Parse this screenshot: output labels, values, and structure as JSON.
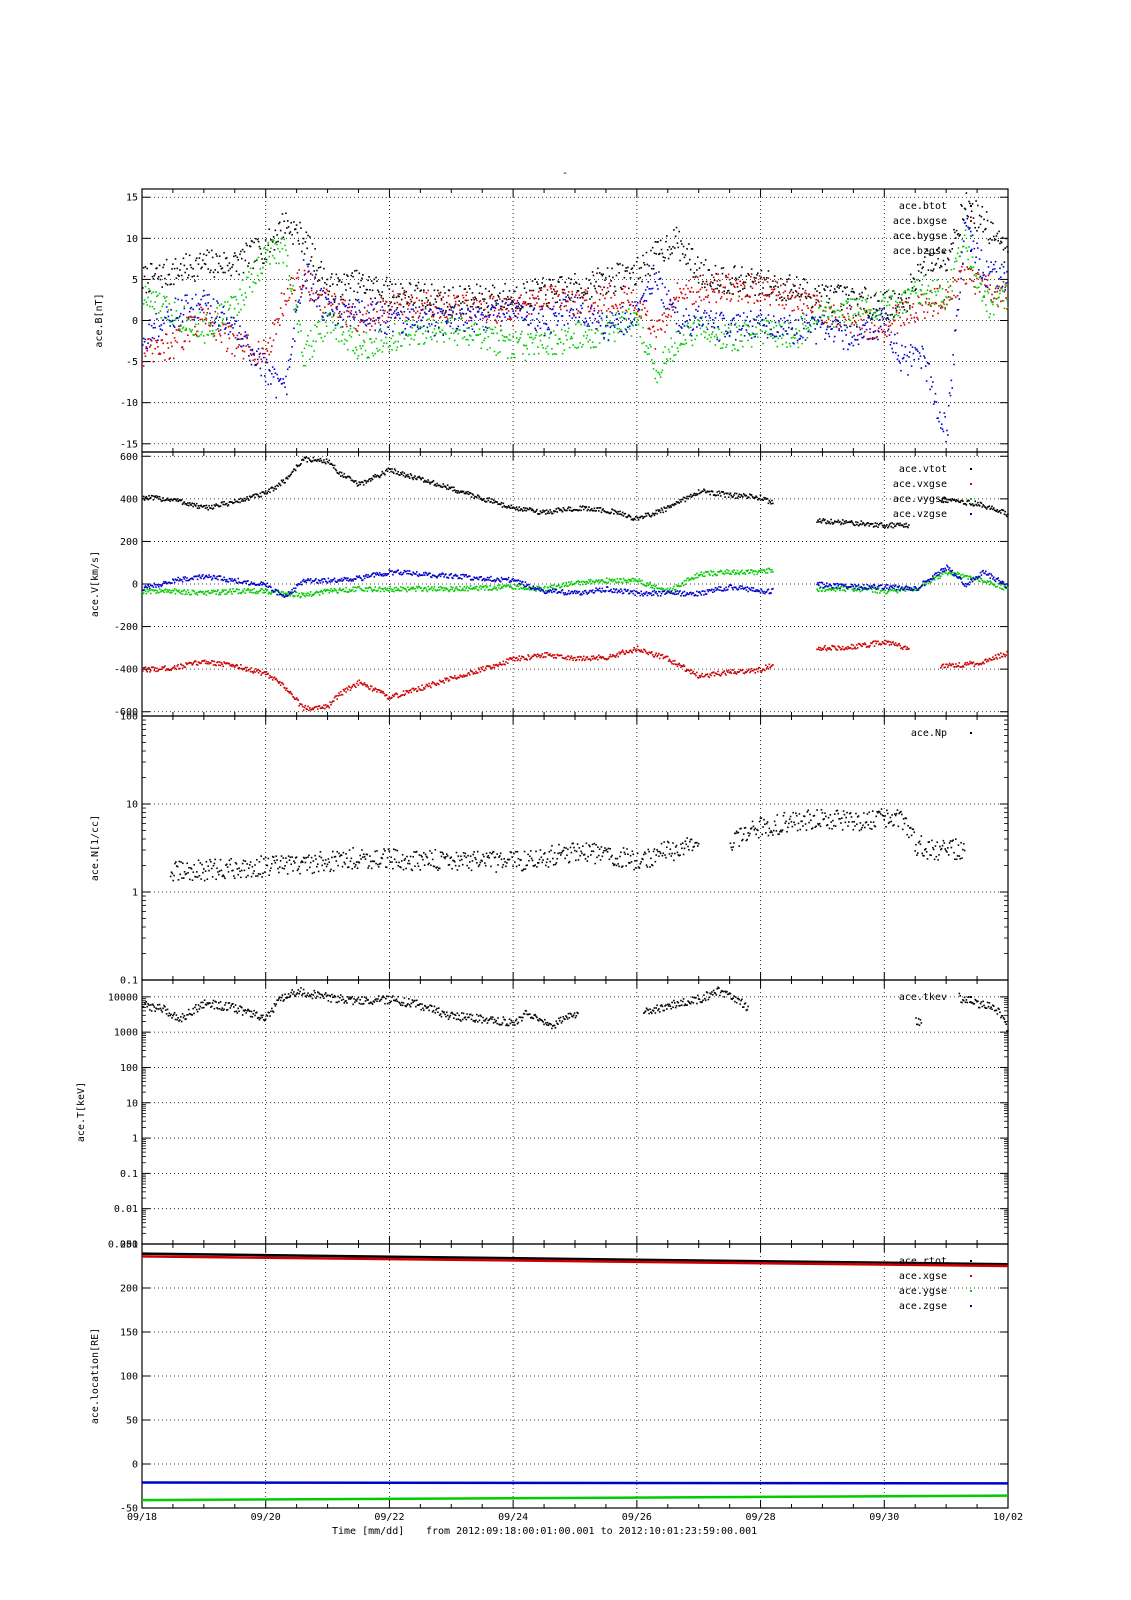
{
  "top_mark": "-",
  "footer": {
    "time_label": "Time [mm/dd]",
    "range_text": "from 2012:09:18:00:01:00.001  to  2012:10:01:23:59:00.001"
  },
  "x_axis": {
    "tick_labels": [
      "09/18",
      "09/20",
      "09/22",
      "09/24",
      "09/26",
      "09/28",
      "09/30",
      "10/02"
    ],
    "tick_days": [
      0,
      2,
      4,
      6,
      8,
      10,
      12,
      14
    ],
    "range_days": [
      0,
      14
    ]
  },
  "colors": {
    "black": "#000000",
    "red": "#cc0000",
    "green": "#00cc00",
    "blue": "#0000cc"
  },
  "chart_data": [
    {
      "id": "B",
      "type": "scatter",
      "ylabel": "ace.B[nT]",
      "ylim": [
        -16,
        16
      ],
      "scale": "linear",
      "grid": true,
      "legend_position": "top-right",
      "yticks": [
        -15,
        -10,
        -5,
        0,
        5,
        10,
        15
      ],
      "ytick_labels": [
        "-15",
        "-10",
        "-5",
        "0",
        "5",
        "10",
        "15"
      ],
      "series": [
        {
          "name": "ace.btot",
          "color": "#000000",
          "x": [
            0,
            0.5,
            1,
            1.5,
            2,
            2.3,
            2.6,
            3,
            3.5,
            4,
            5,
            6,
            6.5,
            7,
            7.5,
            8,
            8.3,
            8.6,
            9,
            9.5,
            10,
            10.5,
            11,
            11.5,
            12,
            12.3,
            12.6,
            13,
            13.3,
            13.6,
            14
          ],
          "y": [
            5,
            6,
            7,
            7,
            9,
            12,
            10,
            4,
            4.5,
            3.5,
            2.5,
            3,
            3.5,
            4,
            5,
            6,
            8,
            10,
            6,
            5,
            4.5,
            4,
            3,
            2.5,
            2,
            2,
            7,
            8,
            14,
            12,
            8
          ]
        },
        {
          "name": "ace.bxgse",
          "color": "#cc0000",
          "x": [
            0,
            0.5,
            1,
            1.5,
            2,
            2.3,
            2.6,
            3,
            3.5,
            4,
            5,
            6,
            6.5,
            7,
            7.5,
            8,
            8.3,
            8.6,
            9,
            9.5,
            10,
            10.5,
            11,
            11.5,
            12,
            12.3,
            12.6,
            13,
            13.3,
            13.6,
            14
          ],
          "y": [
            -4,
            -3,
            1,
            -3,
            -4,
            3,
            5,
            2,
            0,
            2,
            2,
            1,
            3,
            2,
            3,
            2,
            -2,
            3,
            4,
            4,
            4,
            3,
            1,
            0,
            -1,
            1,
            2,
            3,
            6,
            4,
            3
          ]
        },
        {
          "name": "ace.bygse",
          "color": "#00cc00",
          "x": [
            0,
            0.5,
            1,
            1.5,
            2,
            2.3,
            2.6,
            3,
            3.5,
            4,
            5,
            6,
            6.5,
            7,
            7.5,
            8,
            8.3,
            8.6,
            9,
            9.5,
            10,
            10.5,
            11,
            11.5,
            12,
            12.3,
            12.6,
            13,
            13.3,
            13.6,
            14
          ],
          "y": [
            3,
            1,
            -1,
            2,
            8,
            9,
            -4,
            0,
            -3,
            -2,
            -1,
            -3,
            -3,
            -2,
            -1,
            0,
            -6,
            -3,
            -1,
            -2,
            -1,
            -2,
            1,
            1,
            2,
            2,
            4,
            3,
            10,
            2,
            3
          ]
        },
        {
          "name": "ace.bzgse",
          "color": "#0000cc",
          "x": [
            0,
            0.5,
            1,
            1.5,
            2,
            2.3,
            2.6,
            3,
            3.5,
            4,
            5,
            6,
            6.5,
            7,
            7.5,
            8,
            8.3,
            8.6,
            9,
            9.5,
            10,
            10.5,
            11,
            11.5,
            12,
            12.3,
            12.6,
            13,
            13.3,
            13.6,
            14
          ],
          "y": [
            -2,
            1,
            2,
            -1,
            -6,
            -9,
            6,
            1,
            1,
            0,
            0,
            1,
            0,
            2,
            -1,
            1,
            6,
            0,
            0,
            -1,
            0,
            -1,
            -1,
            -2,
            0,
            -5,
            -4,
            -14,
            12,
            6,
            5
          ]
        }
      ]
    },
    {
      "id": "V",
      "type": "scatter",
      "ylabel": "ace.V[km/s]",
      "ylim": [
        -620,
        620
      ],
      "scale": "linear",
      "grid": true,
      "legend_position": "top-right",
      "yticks": [
        -600,
        -400,
        -200,
        0,
        200,
        400,
        600
      ],
      "ytick_labels": [
        "-600",
        "-400",
        "-200",
        "0",
        "200",
        "400",
        "600"
      ],
      "series": [
        {
          "name": "ace.vtot",
          "color": "#000000",
          "x": [
            0,
            0.5,
            1,
            1.5,
            2,
            2.3,
            2.6,
            3,
            3.2,
            3.5,
            4,
            5,
            6,
            6.5,
            7,
            7.5,
            8,
            8.5,
            9,
            9.5,
            10,
            10.2,
            null,
            10.9,
            11.5,
            12,
            12.4,
            null,
            12.9,
            13.5,
            14
          ],
          "y": [
            410,
            400,
            360,
            390,
            430,
            490,
            590,
            580,
            520,
            470,
            540,
            450,
            360,
            340,
            360,
            350,
            310,
            360,
            440,
            420,
            410,
            380,
            null,
            300,
            290,
            280,
            280,
            null,
            400,
            380,
            330
          ]
        },
        {
          "name": "ace.vxgse",
          "color": "#cc0000",
          "x": [
            0,
            0.5,
            1,
            1.5,
            2,
            2.3,
            2.6,
            3,
            3.2,
            3.5,
            4,
            5,
            6,
            6.5,
            7,
            7.5,
            8,
            8.5,
            9,
            9.5,
            10,
            10.2,
            null,
            10.9,
            11.5,
            12,
            12.4,
            null,
            12.9,
            13.5,
            14
          ],
          "y": [
            -400,
            -390,
            -360,
            -380,
            -420,
            -480,
            -580,
            -570,
            -510,
            -460,
            -530,
            -440,
            -350,
            -330,
            -350,
            -340,
            -300,
            -350,
            -430,
            -410,
            -400,
            -370,
            null,
            -300,
            -290,
            -270,
            -300,
            null,
            -380,
            -370,
            -320
          ]
        },
        {
          "name": "ace.vygse",
          "color": "#00cc00",
          "x": [
            0,
            0.5,
            1,
            1.5,
            2,
            2.3,
            2.6,
            3,
            3.5,
            4,
            5,
            6,
            6.5,
            7,
            7.5,
            8,
            8.5,
            9,
            9.5,
            10,
            10.2,
            null,
            10.9,
            11.5,
            12,
            12.5,
            13,
            13.3,
            13.6,
            14
          ],
          "y": [
            -30,
            -30,
            -40,
            -30,
            -30,
            -40,
            -50,
            -30,
            -20,
            -20,
            -20,
            -10,
            -20,
            10,
            20,
            20,
            -30,
            50,
            60,
            60,
            70,
            null,
            -20,
            -20,
            -30,
            -20,
            60,
            40,
            20,
            -20
          ]
        },
        {
          "name": "ace.vzgse",
          "color": "#0000cc",
          "x": [
            0,
            0.5,
            1,
            1.5,
            2,
            2.3,
            2.6,
            3,
            3.5,
            4,
            5,
            6,
            6.5,
            7,
            7.5,
            8,
            8.5,
            9,
            9.5,
            10,
            10.2,
            null,
            10.9,
            11.5,
            12,
            12.5,
            13,
            13.3,
            13.6,
            14
          ],
          "y": [
            -20,
            20,
            40,
            20,
            0,
            -60,
            20,
            20,
            30,
            60,
            40,
            20,
            -30,
            -40,
            -20,
            -40,
            -40,
            -40,
            -10,
            -30,
            -30,
            null,
            0,
            -10,
            -10,
            -20,
            80,
            0,
            60,
            -10
          ]
        }
      ]
    },
    {
      "id": "N",
      "type": "scatter",
      "ylabel": "ace.N[1/cc]",
      "ylim": [
        0.1,
        100
      ],
      "scale": "log",
      "grid": true,
      "legend_position": "top-right",
      "yticks": [
        0.1,
        1,
        10,
        100
      ],
      "ytick_labels": [
        "0.1",
        "1",
        "10",
        "100"
      ],
      "series": [
        {
          "name": "ace.Np",
          "color": "#000000",
          "x": [
            0.45,
            1,
            1.5,
            2,
            2.5,
            3,
            3.5,
            4,
            4.5,
            5,
            5.5,
            6,
            6.5,
            7,
            7.5,
            8,
            8.5,
            9,
            null,
            9.5,
            10,
            10.5,
            11,
            11.5,
            12,
            12.3,
            12.5,
            12.8,
            13.3
          ],
          "y": [
            1.7,
            1.8,
            1.9,
            2.0,
            2.1,
            2.3,
            2.5,
            2.4,
            2.3,
            2.4,
            2.2,
            2.3,
            2.5,
            3.0,
            2.7,
            2.3,
            3.0,
            3.5,
            null,
            3.8,
            5.5,
            6.5,
            7.0,
            6.5,
            7.0,
            6.5,
            3.5,
            3.0,
            3.2
          ]
        }
      ]
    },
    {
      "id": "T",
      "type": "scatter",
      "ylabel": "ace.T[keV]",
      "ylim": [
        0.001,
        30000
      ],
      "scale": "log",
      "grid": true,
      "legend_position": "top-right",
      "yticks": [
        0.001,
        0.01,
        0.1,
        1,
        10,
        100,
        1000,
        10000
      ],
      "ytick_labels": [
        "0.001",
        "0.01",
        "0.1",
        "1",
        "10",
        "100",
        "1000",
        "10000"
      ],
      "series": [
        {
          "name": "ace.tkev",
          "color": "#000000",
          "x": [
            0,
            0.3,
            0.6,
            1,
            1.5,
            2,
            2.2,
            2.5,
            3,
            3.5,
            4,
            4.5,
            5,
            5.5,
            6,
            6.2,
            6.6,
            7.05,
            null,
            8.1,
            8.5,
            9,
            9.3,
            9.6,
            9.8,
            null,
            12.5,
            12.6,
            null,
            13.2,
            13.5,
            13.8,
            14
          ],
          "y": [
            6000,
            5000,
            2500,
            7000,
            5000,
            2500,
            8000,
            15000,
            10000,
            8000,
            9000,
            6000,
            3000,
            2500,
            2000,
            3500,
            1500,
            4000,
            null,
            4000,
            6000,
            9000,
            15000,
            9000,
            5000,
            null,
            2200,
            1800,
            null,
            10000,
            7000,
            5000,
            1200
          ]
        }
      ]
    },
    {
      "id": "location",
      "type": "line",
      "ylabel": "ace.location[RE]",
      "ylim": [
        -50,
        250
      ],
      "scale": "linear",
      "grid": true,
      "legend_position": "top-right",
      "yticks": [
        -50,
        0,
        50,
        100,
        150,
        200,
        250
      ],
      "ytick_labels": [
        "-50",
        "0",
        "50",
        "100",
        "150",
        "200",
        "250"
      ],
      "series": [
        {
          "name": "ace.rtot",
          "color": "#000000",
          "x": [
            0,
            14
          ],
          "y": [
            239,
            227
          ]
        },
        {
          "name": "ace.xgse",
          "color": "#cc0000",
          "x": [
            0,
            14
          ],
          "y": [
            236,
            225
          ]
        },
        {
          "name": "ace.ygse",
          "color": "#00cc00",
          "x": [
            0,
            14
          ],
          "y": [
            -41,
            -36
          ]
        },
        {
          "name": "ace.zgse",
          "color": "#0000cc",
          "x": [
            0,
            14
          ],
          "y": [
            -21,
            -22
          ]
        }
      ]
    }
  ]
}
